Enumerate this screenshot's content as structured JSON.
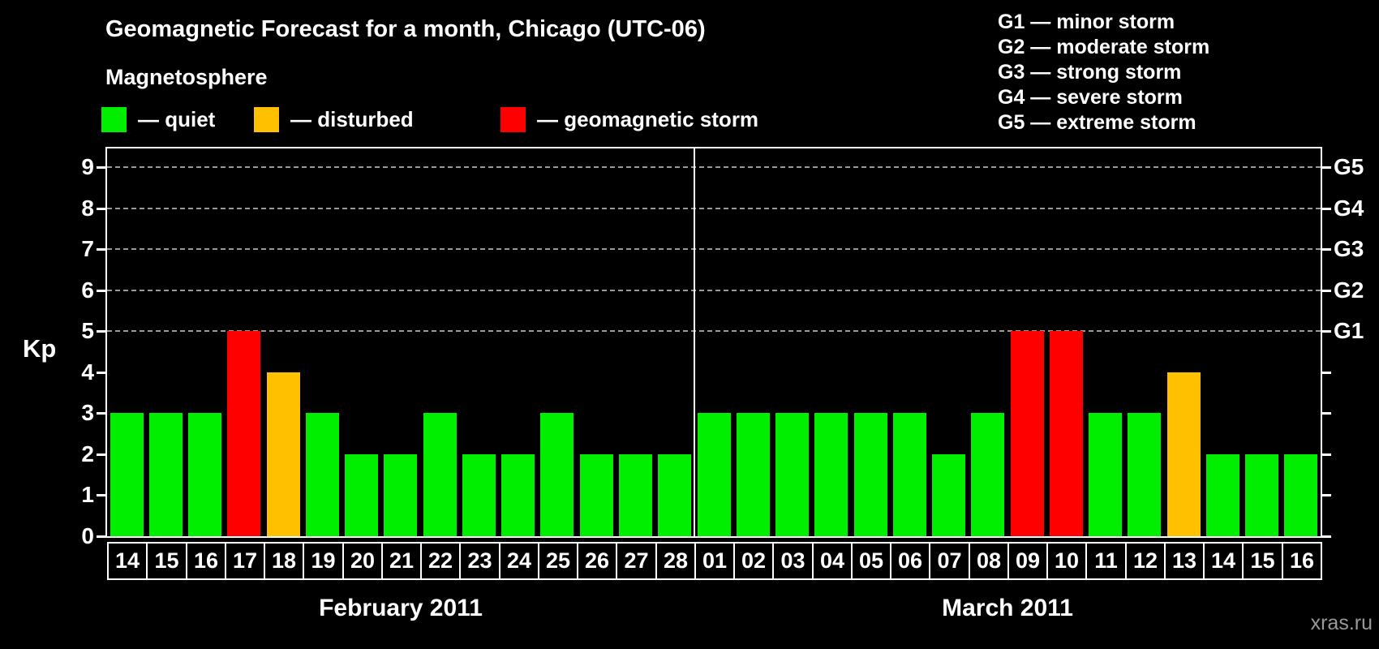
{
  "header": {
    "title": "Geomagnetic Forecast for a month, Chicago (UTC-06)",
    "subtitle": "Magnetosphere"
  },
  "legend": {
    "items": [
      {
        "status": "quiet",
        "label": "— quiet"
      },
      {
        "status": "disturbed",
        "label": "— disturbed"
      },
      {
        "status": "storm",
        "label": "— geomagnetic storm"
      }
    ]
  },
  "g_scale": [
    "G1 — minor storm",
    "G2 — moderate storm",
    "G3 — strong storm",
    "G4 — severe storm",
    "G5 — extreme storm"
  ],
  "watermark": "xras.ru",
  "chart_data": {
    "type": "bar",
    "title": "Geomagnetic Forecast for a month, Chicago (UTC-06)",
    "ylabel": "Kp",
    "ylim": [
      0,
      9.45
    ],
    "y_ticks": [
      0,
      1,
      2,
      3,
      4,
      5,
      6,
      7,
      8,
      9
    ],
    "grid": {
      "dashed_levels": [
        5,
        6,
        7,
        8,
        9
      ],
      "color": "#999999"
    },
    "right_axis": [
      {
        "kp": 5,
        "label": "G1"
      },
      {
        "kp": 6,
        "label": "G2"
      },
      {
        "kp": 7,
        "label": "G3"
      },
      {
        "kp": 8,
        "label": "G4"
      },
      {
        "kp": 9,
        "label": "G5"
      }
    ],
    "colors": {
      "quiet": "#00ee00",
      "disturbed": "#ffc000",
      "storm": "#ff0000"
    },
    "months": [
      {
        "label": "February 2011",
        "days": [
          {
            "day": "14",
            "kp": 3,
            "status": "quiet"
          },
          {
            "day": "15",
            "kp": 3,
            "status": "quiet"
          },
          {
            "day": "16",
            "kp": 3,
            "status": "quiet"
          },
          {
            "day": "17",
            "kp": 5,
            "status": "storm"
          },
          {
            "day": "18",
            "kp": 4,
            "status": "disturbed"
          },
          {
            "day": "19",
            "kp": 3,
            "status": "quiet"
          },
          {
            "day": "20",
            "kp": 2,
            "status": "quiet"
          },
          {
            "day": "21",
            "kp": 2,
            "status": "quiet"
          },
          {
            "day": "22",
            "kp": 3,
            "status": "quiet"
          },
          {
            "day": "23",
            "kp": 2,
            "status": "quiet"
          },
          {
            "day": "24",
            "kp": 2,
            "status": "quiet"
          },
          {
            "day": "25",
            "kp": 3,
            "status": "quiet"
          },
          {
            "day": "26",
            "kp": 2,
            "status": "quiet"
          },
          {
            "day": "27",
            "kp": 2,
            "status": "quiet"
          },
          {
            "day": "28",
            "kp": 2,
            "status": "quiet"
          }
        ]
      },
      {
        "label": "March 2011",
        "days": [
          {
            "day": "01",
            "kp": 3,
            "status": "quiet"
          },
          {
            "day": "02",
            "kp": 3,
            "status": "quiet"
          },
          {
            "day": "03",
            "kp": 3,
            "status": "quiet"
          },
          {
            "day": "04",
            "kp": 3,
            "status": "quiet"
          },
          {
            "day": "05",
            "kp": 3,
            "status": "quiet"
          },
          {
            "day": "06",
            "kp": 3,
            "status": "quiet"
          },
          {
            "day": "07",
            "kp": 2,
            "status": "quiet"
          },
          {
            "day": "08",
            "kp": 3,
            "status": "quiet"
          },
          {
            "day": "09",
            "kp": 5,
            "status": "storm"
          },
          {
            "day": "10",
            "kp": 5,
            "status": "storm"
          },
          {
            "day": "11",
            "kp": 3,
            "status": "quiet"
          },
          {
            "day": "12",
            "kp": 3,
            "status": "quiet"
          },
          {
            "day": "13",
            "kp": 4,
            "status": "disturbed"
          },
          {
            "day": "14",
            "kp": 2,
            "status": "quiet"
          },
          {
            "day": "15",
            "kp": 2,
            "status": "quiet"
          },
          {
            "day": "16",
            "kp": 2,
            "status": "quiet"
          }
        ]
      }
    ]
  }
}
